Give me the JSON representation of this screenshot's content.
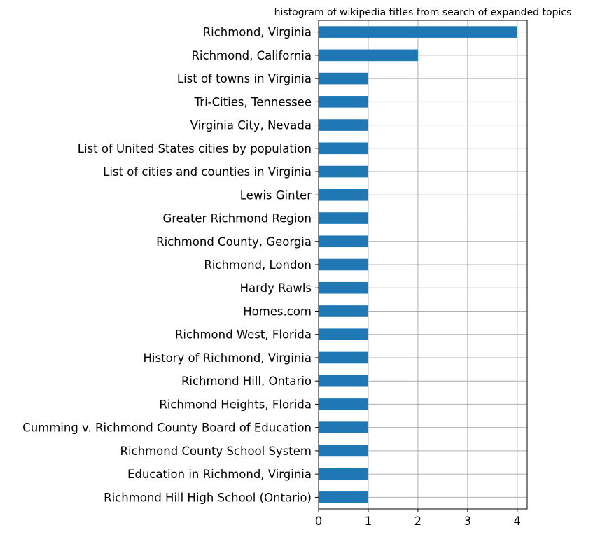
{
  "chart_data": {
    "type": "bar",
    "orientation": "horizontal",
    "title": "histogram of wikipedia titles from search of expanded topics",
    "xlabel": "",
    "ylabel": "",
    "xlim": [
      0,
      4.2
    ],
    "xticks": [
      0,
      1,
      2,
      3,
      4
    ],
    "grid": true,
    "bar_color": "#1f77b4",
    "grid_color": "#b0b0b0",
    "categories": [
      "Richmond, Virginia",
      "Richmond, California",
      "List of towns in Virginia",
      "Tri-Cities, Tennessee",
      "Virginia City, Nevada",
      "List of United States cities by population",
      "List of cities and counties in Virginia",
      "Lewis Ginter",
      "Greater Richmond Region",
      "Richmond County, Georgia",
      "Richmond, London",
      "Hardy Rawls",
      "Homes.com",
      "Richmond West, Florida",
      "History of Richmond, Virginia",
      "Richmond Hill, Ontario",
      "Richmond Heights, Florida",
      "Cumming v. Richmond County Board of Education",
      "Richmond County School System",
      "Education in Richmond, Virginia",
      "Richmond Hill High School (Ontario)"
    ],
    "values": [
      4,
      2,
      1,
      1,
      1,
      1,
      1,
      1,
      1,
      1,
      1,
      1,
      1,
      1,
      1,
      1,
      1,
      1,
      1,
      1,
      1
    ]
  }
}
